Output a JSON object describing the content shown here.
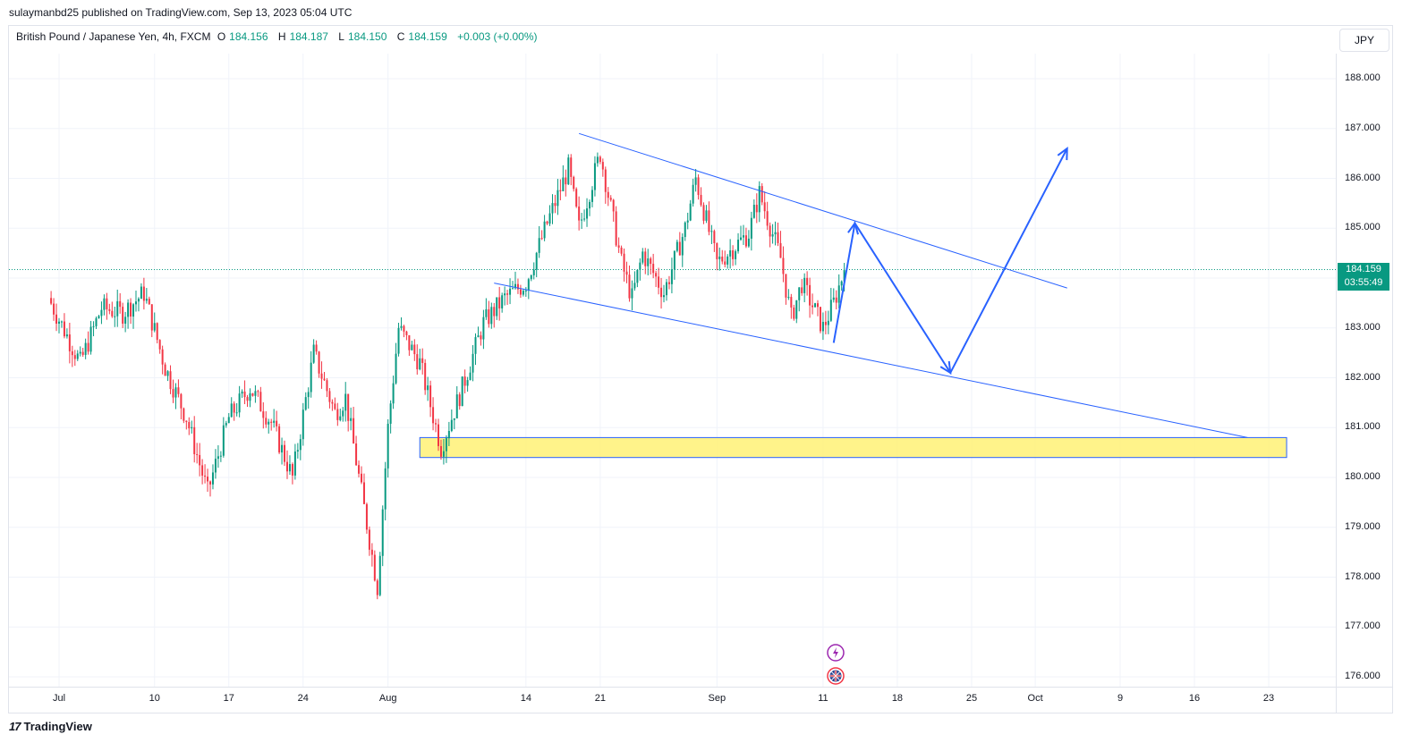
{
  "header": {
    "published": "sulaymanbd25 published on TradingView.com, Sep 13, 2023 05:04 UTC"
  },
  "legend": {
    "symbol": "British Pound / Japanese Yen, 4h, FXCM",
    "open_label": "O",
    "open": "184.156",
    "high_label": "H",
    "high": "184.187",
    "low_label": "L",
    "low": "184.150",
    "close_label": "C",
    "close": "184.159",
    "change": "+0.003 (+0.00%)"
  },
  "currency": "JPY",
  "last_price": {
    "price": "184.159",
    "countdown": "03:55:49"
  },
  "footer": {
    "brand": "TradingView"
  },
  "colors": {
    "up": "#089981",
    "down": "#f23645",
    "drawing": "#2962ff",
    "zone": "#fff176"
  },
  "chart_data": {
    "type": "candlestick",
    "symbol": "GBPJPY",
    "timeframe": "4h",
    "y_ticks": [
      "188.000",
      "187.000",
      "186.000",
      "185.000",
      "184.000",
      "183.000",
      "182.000",
      "181.000",
      "180.000",
      "179.000",
      "178.000",
      "177.000",
      "176.000"
    ],
    "ylim": [
      175.8,
      188.3
    ],
    "x_ticks": [
      "Jul",
      "10",
      "17",
      "24",
      "Aug",
      "14",
      "21",
      "Sep",
      "11",
      "18",
      "25",
      "Oct",
      "9",
      "16",
      "23"
    ],
    "price_path": [
      {
        "date": "Jun 30",
        "close": 183.6
      },
      {
        "date": "Jul 3",
        "close": 182.3
      },
      {
        "date": "Jul 5",
        "close": 183.4
      },
      {
        "date": "Jul 7",
        "close": 183.3
      },
      {
        "date": "Jul 9",
        "close": 183.7
      },
      {
        "date": "Jul 11",
        "close": 182.2
      },
      {
        "date": "Jul 13",
        "close": 181.2
      },
      {
        "date": "Jul 15",
        "close": 179.7
      },
      {
        "date": "Jul 17",
        "close": 181.2
      },
      {
        "date": "Jul 19",
        "close": 181.8
      },
      {
        "date": "Jul 21",
        "close": 181.1
      },
      {
        "date": "Jul 23",
        "close": 180.0
      },
      {
        "date": "Jul 25",
        "close": 182.5
      },
      {
        "date": "Jul 27",
        "close": 181.3
      },
      {
        "date": "Jul 28",
        "close": 181.6
      },
      {
        "date": "Jul 31",
        "close": 177.8
      },
      {
        "date": "Aug 1",
        "close": 181.0
      },
      {
        "date": "Aug 2",
        "close": 183.0
      },
      {
        "date": "Aug 4",
        "close": 182.3
      },
      {
        "date": "Aug 6",
        "close": 180.6
      },
      {
        "date": "Aug 8",
        "close": 181.8
      },
      {
        "date": "Aug 10",
        "close": 183.1
      },
      {
        "date": "Aug 12",
        "close": 183.6
      },
      {
        "date": "Aug 14",
        "close": 183.9
      },
      {
        "date": "Aug 16",
        "close": 185.1
      },
      {
        "date": "Aug 18",
        "close": 186.2
      },
      {
        "date": "Aug 19",
        "close": 185.0
      },
      {
        "date": "Aug 21",
        "close": 186.5
      },
      {
        "date": "Aug 23",
        "close": 184.3
      },
      {
        "date": "Aug 24",
        "close": 183.6
      },
      {
        "date": "Aug 25",
        "close": 184.5
      },
      {
        "date": "Aug 27",
        "close": 183.7
      },
      {
        "date": "Aug 29",
        "close": 185.0
      },
      {
        "date": "Aug 30",
        "close": 186.0
      },
      {
        "date": "Sep 1",
        "close": 184.3
      },
      {
        "date": "Sep 4",
        "close": 184.9
      },
      {
        "date": "Sep 5",
        "close": 185.7
      },
      {
        "date": "Sep 7",
        "close": 184.4
      },
      {
        "date": "Sep 8",
        "close": 183.2
      },
      {
        "date": "Sep 9",
        "close": 183.9
      },
      {
        "date": "Sep 11",
        "close": 183.0
      },
      {
        "date": "Sep 12",
        "close": 183.5
      },
      {
        "date": "Sep 13",
        "close": 184.159
      }
    ],
    "drawings": {
      "upper_trendline": [
        {
          "date": "Aug 19",
          "price": 186.9
        },
        {
          "date": "Oct 4",
          "price": 183.8
        }
      ],
      "lower_trendline": [
        {
          "date": "Aug 11",
          "price": 183.9
        },
        {
          "date": "Oct 21",
          "price": 180.8
        }
      ],
      "projection_path": [
        {
          "date": "Sep 12",
          "price": 182.7
        },
        {
          "date": "Sep 14",
          "price": 185.1
        },
        {
          "date": "Sep 23",
          "price": 182.1
        },
        {
          "date": "Oct 4",
          "price": 186.6
        }
      ],
      "support_zone": {
        "from": "Aug 4",
        "to": "Oct 23",
        "low": 180.4,
        "high": 180.8
      }
    }
  }
}
